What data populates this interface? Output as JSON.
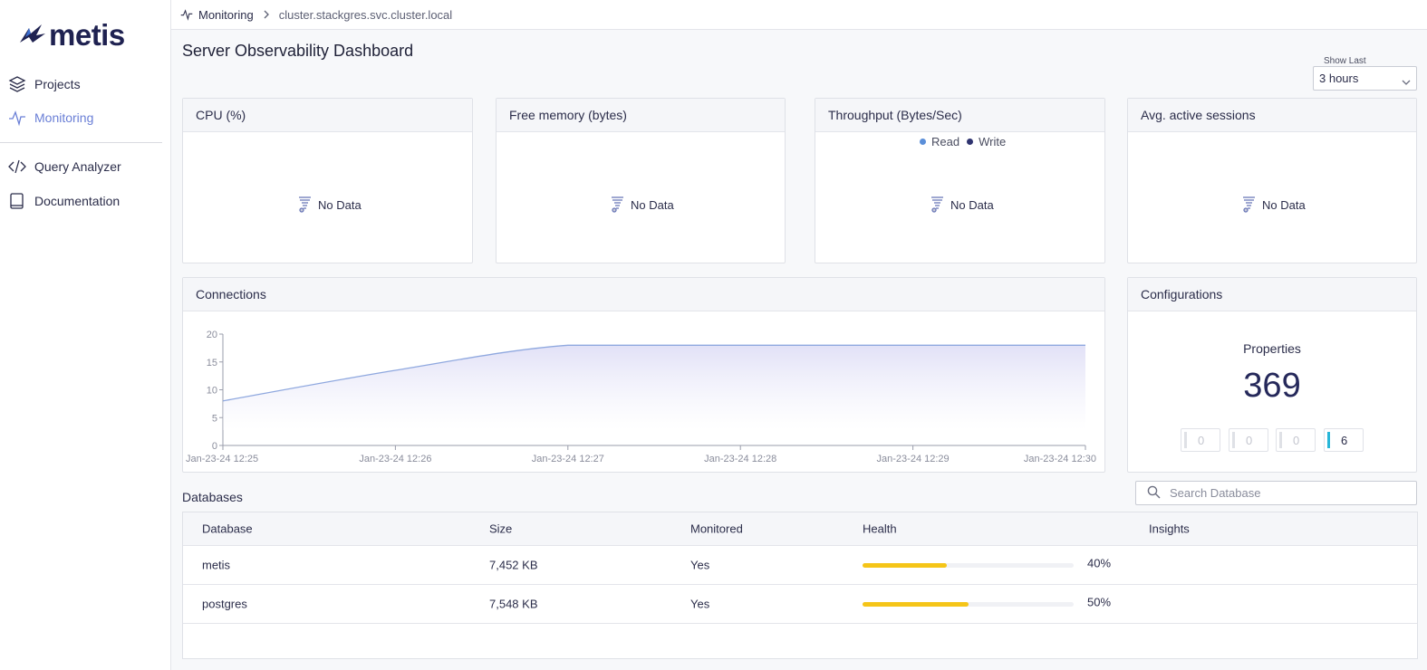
{
  "app": {
    "logo_text": "metis"
  },
  "sidebar": {
    "items": [
      {
        "label": "Projects",
        "icon": "layers-icon"
      },
      {
        "label": "Monitoring",
        "icon": "pulse-icon",
        "active": true
      },
      {
        "label": "Query Analyzer",
        "icon": "code-icon"
      },
      {
        "label": "Documentation",
        "icon": "book-icon"
      }
    ]
  },
  "breadcrumb": {
    "section": "Monitoring",
    "host": "cluster.stackgres.svc.cluster.local"
  },
  "page": {
    "title": "Server Observability Dashboard"
  },
  "show_last": {
    "label": "Show Last",
    "value": "3 hours"
  },
  "cards": {
    "cpu": {
      "title": "CPU (%)",
      "empty": "No Data"
    },
    "memory": {
      "title": "Free memory (bytes)",
      "empty": "No Data"
    },
    "throughput": {
      "title": "Throughput (Bytes/Sec)",
      "empty": "No Data",
      "legend": [
        {
          "label": "Read",
          "color": "#5b8fd9"
        },
        {
          "label": "Write",
          "color": "#2f3470"
        }
      ]
    },
    "sessions": {
      "title": "Avg. active sessions",
      "empty": "No Data"
    },
    "connections": {
      "title": "Connections"
    },
    "configurations": {
      "title": "Configurations",
      "subtitle": "Properties",
      "value": "369",
      "boxes": [
        "0",
        "0",
        "0",
        "6"
      ]
    }
  },
  "chart_data": {
    "type": "area",
    "title": "Connections",
    "x": [
      "Jan-23-24 12:25",
      "Jan-23-24 12:26",
      "Jan-23-24 12:27",
      "Jan-23-24 12:28",
      "Jan-23-24 12:29",
      "Jan-23-24 12:30"
    ],
    "series": [
      {
        "values": [
          8,
          13.5,
          18,
          18,
          18,
          18
        ]
      }
    ],
    "ylim": [
      0,
      20
    ],
    "yticks": [
      "20",
      "15",
      "10",
      "5",
      "0"
    ],
    "line_color": "#8fa8df"
  },
  "databases": {
    "title": "Databases",
    "search_placeholder": "Search Database",
    "columns": [
      "Database",
      "Size",
      "Monitored",
      "Health",
      "Insights"
    ],
    "rows": [
      {
        "name": "metis",
        "size": "7,452 KB",
        "monitored": "Yes",
        "health": 40,
        "health_label": "40%"
      },
      {
        "name": "postgres",
        "size": "7,548 KB",
        "monitored": "Yes",
        "health": 50,
        "health_label": "50%"
      }
    ]
  }
}
